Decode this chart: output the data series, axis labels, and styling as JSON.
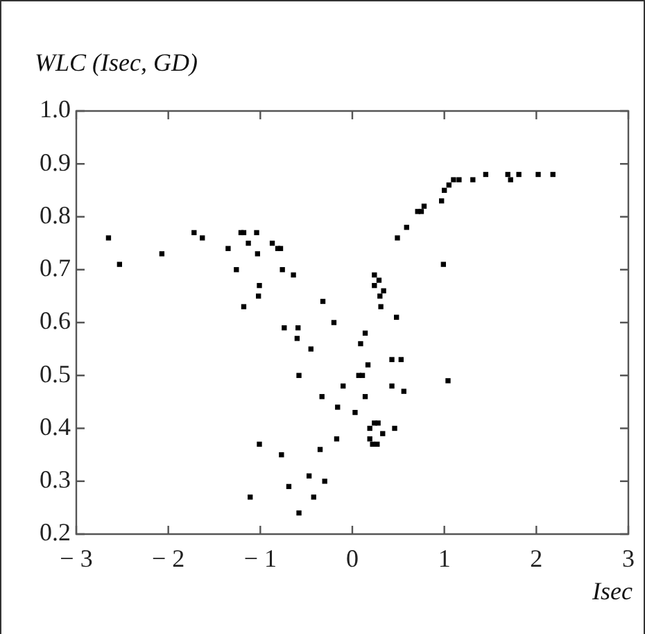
{
  "chart_data": {
    "type": "scatter",
    "ylabel": "WLC (Isec, GD)",
    "xlabel": "Isec",
    "xlim": [
      -3,
      3
    ],
    "ylim": [
      0.2,
      1.0
    ],
    "xticks": [
      {
        "value": -3,
        "label": "− 3"
      },
      {
        "value": -2,
        "label": "− 2"
      },
      {
        "value": -1,
        "label": "− 1"
      },
      0,
      1,
      2,
      3
    ],
    "yticks": [
      0.2,
      0.3,
      0.4,
      0.5,
      0.6,
      0.7,
      0.8,
      0.9,
      {
        "value": 1,
        "label": "1.0"
      }
    ],
    "grid": false,
    "legend": false,
    "marker": "square",
    "series": [
      {
        "color": "#000000",
        "x": [
          -2.65,
          -2.53,
          -2.07,
          -1.72,
          -1.63,
          -1.35,
          -1.26,
          -1.21,
          -1.18,
          -1.13,
          -1.04,
          -1.03,
          -1.01,
          -1.02,
          -1.18,
          -0.87,
          -0.81,
          -0.78,
          -0.76,
          -0.64,
          -0.74,
          -0.59,
          -0.6,
          -0.45,
          -0.58,
          -0.32,
          -0.2,
          -0.1,
          -0.33,
          -0.16,
          0.03,
          -0.17,
          -0.35,
          -1.01,
          -0.77,
          -0.47,
          -0.3,
          -0.69,
          -0.42,
          -1.11,
          -0.58,
          0.14,
          0.09,
          0.07,
          0.11,
          0.17,
          0.14,
          0.24,
          0.29,
          0.24,
          0.34,
          0.3,
          0.31,
          0.48,
          0.43,
          0.53,
          0.43,
          0.56,
          0.46,
          0.33,
          0.19,
          0.24,
          0.28,
          0.19,
          0.22,
          0.27,
          0.49,
          0.59,
          0.71,
          0.75,
          0.78,
          0.97,
          0.99,
          1.04,
          1.0,
          1.05,
          1.1,
          1.16,
          1.31,
          1.45,
          1.69,
          1.72,
          1.81,
          2.02,
          2.18
        ],
        "values": [
          0.76,
          0.71,
          0.73,
          0.77,
          0.76,
          0.74,
          0.7,
          0.77,
          0.77,
          0.75,
          0.77,
          0.73,
          0.67,
          0.65,
          0.63,
          0.75,
          0.74,
          0.74,
          0.7,
          0.69,
          0.59,
          0.59,
          0.57,
          0.55,
          0.5,
          0.64,
          0.6,
          0.48,
          0.46,
          0.44,
          0.43,
          0.38,
          0.36,
          0.37,
          0.35,
          0.31,
          0.3,
          0.29,
          0.27,
          0.27,
          0.24,
          0.58,
          0.56,
          0.5,
          0.5,
          0.52,
          0.46,
          0.69,
          0.68,
          0.67,
          0.66,
          0.65,
          0.63,
          0.61,
          0.53,
          0.53,
          0.48,
          0.47,
          0.4,
          0.39,
          0.4,
          0.41,
          0.41,
          0.38,
          0.37,
          0.37,
          0.76,
          0.78,
          0.81,
          0.81,
          0.82,
          0.83,
          0.71,
          0.49,
          0.85,
          0.86,
          0.87,
          0.87,
          0.87,
          0.88,
          0.88,
          0.87,
          0.88,
          0.88,
          0.88
        ]
      }
    ]
  }
}
